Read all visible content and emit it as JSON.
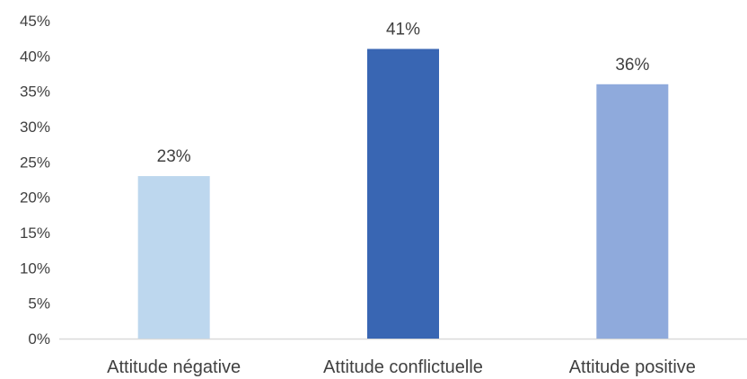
{
  "chart_data": {
    "type": "bar",
    "categories": [
      "Attitude négative",
      "Attitude conflictuelle",
      "Attitude positive"
    ],
    "values": [
      23,
      41,
      36
    ],
    "data_labels": [
      "23%",
      "41%",
      "36%"
    ],
    "bar_colors": [
      "#BDD7EE",
      "#3966B3",
      "#8FAADC"
    ],
    "title": "",
    "xlabel": "",
    "ylabel": "",
    "ylim": [
      0,
      45
    ],
    "y_ticks": [
      0,
      5,
      10,
      15,
      20,
      25,
      30,
      35,
      40,
      45
    ],
    "y_tick_labels": [
      "0%",
      "5%",
      "10%",
      "15%",
      "20%",
      "25%",
      "30%",
      "35%",
      "40%",
      "45%"
    ],
    "grid": false,
    "legend": "none",
    "axis_color": "#D9D9D9",
    "text_color": "#404040"
  }
}
